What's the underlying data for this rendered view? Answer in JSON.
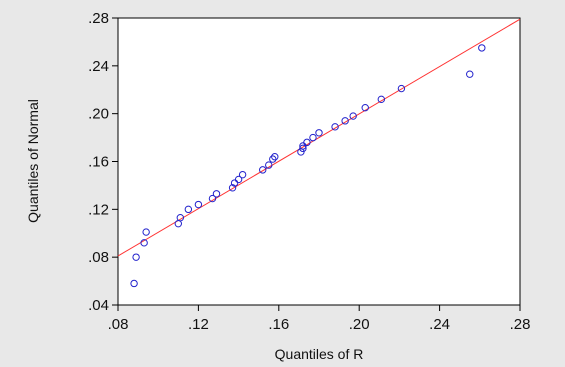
{
  "chart_data": {
    "type": "scatter",
    "title": "",
    "xlabel": "Quantiles of R",
    "ylabel": "Quantiles of Normal",
    "xlim": [
      0.08,
      0.28
    ],
    "ylim": [
      0.04,
      0.28
    ],
    "xticks": [
      0.08,
      0.12,
      0.16,
      0.2,
      0.24,
      0.28
    ],
    "xtick_labels": [
      ".08",
      ".12",
      ".16",
      ".20",
      ".24",
      ".28"
    ],
    "yticks": [
      0.04,
      0.08,
      0.12,
      0.16,
      0.2,
      0.24,
      0.28
    ],
    "ytick_labels": [
      ".04",
      ".08",
      ".12",
      ".16",
      ".20",
      ".24",
      ".28"
    ],
    "grid": false,
    "legend": "none",
    "point_color": "#2222cc",
    "line_color": "#ff3333",
    "reference_line": {
      "x": [
        0.08,
        0.28
      ],
      "y": [
        0.081,
        0.279
      ]
    },
    "series": [
      {
        "x": [
          0.088,
          0.089,
          0.093,
          0.094,
          0.11,
          0.111,
          0.115,
          0.12,
          0.127,
          0.129,
          0.137,
          0.138,
          0.14,
          0.142,
          0.152,
          0.155,
          0.157,
          0.158,
          0.171,
          0.172,
          0.172,
          0.174,
          0.177,
          0.18,
          0.188,
          0.193,
          0.197,
          0.203,
          0.211,
          0.221,
          0.255,
          0.261
        ],
        "y": [
          0.058,
          0.08,
          0.092,
          0.101,
          0.108,
          0.113,
          0.12,
          0.124,
          0.129,
          0.133,
          0.138,
          0.142,
          0.145,
          0.149,
          0.153,
          0.157,
          0.162,
          0.164,
          0.168,
          0.171,
          0.173,
          0.176,
          0.18,
          0.184,
          0.189,
          0.194,
          0.198,
          0.205,
          0.212,
          0.221,
          0.233,
          0.255
        ]
      }
    ]
  }
}
